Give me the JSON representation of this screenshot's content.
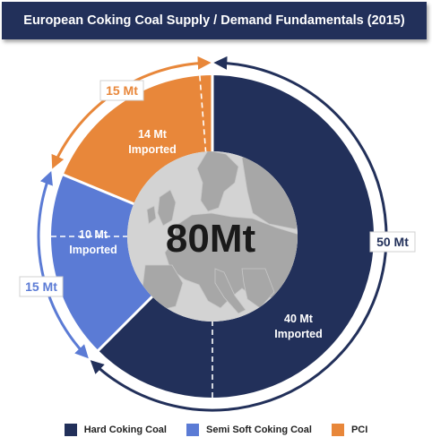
{
  "title": "European Coking Coal Supply / Demand Fundamentals (2015)",
  "center_label": "80Mt",
  "colors": {
    "hard": "#22305a",
    "semi": "#5b7bd5",
    "pci": "#e8873a",
    "map_bg": "#d3d3d3",
    "land": "#a7a7a7"
  },
  "legend": [
    {
      "label": "Hard Coking Coal",
      "color": "#22305a"
    },
    {
      "label": "Semi Soft Coking Coal",
      "color": "#5b7bd5"
    },
    {
      "label": "PCI",
      "color": "#e8873a"
    }
  ],
  "chart_data": {
    "type": "pie",
    "title": "European Coking Coal Supply / Demand Fundamentals (2015)",
    "total": 80,
    "unit": "Mt",
    "slices": [
      {
        "name": "Hard Coking Coal",
        "value": 50,
        "imported": 40,
        "callout": "50 Mt",
        "imported_label": [
          "40 Mt",
          "Imported"
        ]
      },
      {
        "name": "Semi Soft Coking Coal",
        "value": 15,
        "imported": 10,
        "callout": "15 Mt",
        "imported_label": [
          "10 Mt",
          "Imported"
        ]
      },
      {
        "name": "PCI",
        "value": 15,
        "imported": 14,
        "callout": "15 Mt",
        "imported_label": [
          "14 Mt",
          "Imported"
        ]
      }
    ]
  }
}
